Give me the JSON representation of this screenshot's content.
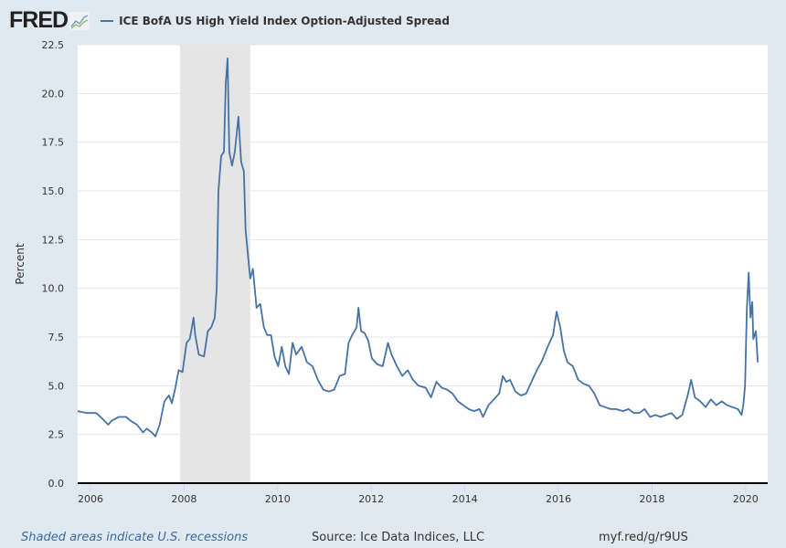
{
  "header": {
    "logo": "FRED",
    "legend_label": "ICE BofA US High Yield Index Option-Adjusted Spread"
  },
  "footer": {
    "recession_note": "Shaded areas indicate U.S. recessions",
    "source": "Source: Ice Data Indices, LLC",
    "short_url": "myf.red/g/r9US"
  },
  "colors": {
    "line": "#4572a7",
    "background": "#e1e9f0",
    "recession": "#e5e5e5",
    "grid": "#e6e6e6"
  },
  "chart_data": {
    "type": "line",
    "title": "",
    "ylabel": "Percent",
    "xlabel": "",
    "ylim": [
      0,
      22.5
    ],
    "yticks": [
      "0.0",
      "2.5",
      "5.0",
      "7.5",
      "10.0",
      "12.5",
      "15.0",
      "17.5",
      "20.0",
      "22.5"
    ],
    "xlim": [
      "2005-09-23",
      "2020-04-05"
    ],
    "xticks": [
      "2006",
      "2008",
      "2010",
      "2012",
      "2014",
      "2016",
      "2018",
      "2020"
    ],
    "grid": true,
    "legend_placement": "top",
    "recessions": [
      [
        "2007-12-01",
        "2009-06-01"
      ]
    ],
    "series": [
      {
        "name": "ICE BofA US High Yield Index Option-Adjusted Spread",
        "points": [
          [
            "2005-09-23",
            3.7
          ],
          [
            "2005-12-05",
            3.6
          ],
          [
            "2006-02-15",
            3.6
          ],
          [
            "2006-04-05",
            3.3
          ],
          [
            "2006-05-20",
            3.0
          ],
          [
            "2006-06-15",
            3.2
          ],
          [
            "2006-08-10",
            3.4
          ],
          [
            "2006-10-05",
            3.4
          ],
          [
            "2006-11-10",
            3.2
          ],
          [
            "2006-12-30",
            3.0
          ],
          [
            "2007-02-15",
            2.6
          ],
          [
            "2007-03-15",
            2.8
          ],
          [
            "2007-04-25",
            2.6
          ],
          [
            "2007-05-22",
            2.4
          ],
          [
            "2007-06-25",
            3.0
          ],
          [
            "2007-08-01",
            4.2
          ],
          [
            "2007-09-05",
            4.5
          ],
          [
            "2007-09-28",
            4.1
          ],
          [
            "2007-10-25",
            4.9
          ],
          [
            "2007-11-20",
            5.8
          ],
          [
            "2007-12-20",
            5.7
          ],
          [
            "2008-01-20",
            7.2
          ],
          [
            "2008-02-15",
            7.4
          ],
          [
            "2008-03-15",
            8.5
          ],
          [
            "2008-03-28",
            7.6
          ],
          [
            "2008-04-25",
            6.6
          ],
          [
            "2008-06-05",
            6.5
          ],
          [
            "2008-07-05",
            7.8
          ],
          [
            "2008-08-01",
            8.0
          ],
          [
            "2008-08-28",
            8.5
          ],
          [
            "2008-09-12",
            10.0
          ],
          [
            "2008-09-26",
            15.0
          ],
          [
            "2008-10-17",
            16.8
          ],
          [
            "2008-11-08",
            17.0
          ],
          [
            "2008-11-22",
            20.5
          ],
          [
            "2008-12-06",
            21.8
          ],
          [
            "2008-12-20",
            17.0
          ],
          [
            "2009-01-10",
            16.3
          ],
          [
            "2009-02-01",
            17.0
          ],
          [
            "2009-03-01",
            18.8
          ],
          [
            "2009-03-22",
            16.5
          ],
          [
            "2009-04-12",
            16.0
          ],
          [
            "2009-04-26",
            13.0
          ],
          [
            "2009-05-10",
            12.0
          ],
          [
            "2009-06-01",
            10.5
          ],
          [
            "2009-06-22",
            11.0
          ],
          [
            "2009-07-20",
            9.0
          ],
          [
            "2009-08-18",
            9.2
          ],
          [
            "2009-09-15",
            8.0
          ],
          [
            "2009-10-12",
            7.6
          ],
          [
            "2009-11-10",
            7.6
          ],
          [
            "2009-12-08",
            6.5
          ],
          [
            "2010-01-05",
            6.0
          ],
          [
            "2010-02-02",
            7.0
          ],
          [
            "2010-03-02",
            6.0
          ],
          [
            "2010-03-30",
            5.6
          ],
          [
            "2010-04-27",
            7.2
          ],
          [
            "2010-05-25",
            6.6
          ],
          [
            "2010-07-07",
            7.0
          ],
          [
            "2010-08-18",
            6.2
          ],
          [
            "2010-09-30",
            6.0
          ],
          [
            "2010-11-11",
            5.3
          ],
          [
            "2010-12-23",
            4.8
          ],
          [
            "2011-02-04",
            4.7
          ],
          [
            "2011-03-18",
            4.8
          ],
          [
            "2011-04-29",
            5.5
          ],
          [
            "2011-06-10",
            5.6
          ],
          [
            "2011-07-08",
            7.2
          ],
          [
            "2011-08-05",
            7.6
          ],
          [
            "2011-09-09",
            8.0
          ],
          [
            "2011-09-23",
            9.0
          ],
          [
            "2011-10-14",
            7.8
          ],
          [
            "2011-11-11",
            7.7
          ],
          [
            "2011-12-09",
            7.3
          ],
          [
            "2012-01-06",
            6.4
          ],
          [
            "2012-02-17",
            6.1
          ],
          [
            "2012-03-30",
            6.0
          ],
          [
            "2012-05-11",
            7.2
          ],
          [
            "2012-06-08",
            6.6
          ],
          [
            "2012-07-20",
            6.0
          ],
          [
            "2012-08-31",
            5.5
          ],
          [
            "2012-10-12",
            5.8
          ],
          [
            "2012-11-23",
            5.3
          ],
          [
            "2013-01-04",
            5.0
          ],
          [
            "2013-03-01",
            4.9
          ],
          [
            "2013-04-12",
            4.4
          ],
          [
            "2013-05-24",
            5.2
          ],
          [
            "2013-07-05",
            4.9
          ],
          [
            "2013-08-16",
            4.8
          ],
          [
            "2013-09-27",
            4.6
          ],
          [
            "2013-11-08",
            4.2
          ],
          [
            "2013-12-20",
            4.0
          ],
          [
            "2014-01-31",
            3.8
          ],
          [
            "2014-03-14",
            3.7
          ],
          [
            "2014-04-25",
            3.8
          ],
          [
            "2014-05-23",
            3.4
          ],
          [
            "2014-07-04",
            4.0
          ],
          [
            "2014-08-15",
            4.3
          ],
          [
            "2014-09-26",
            4.6
          ],
          [
            "2014-10-24",
            5.5
          ],
          [
            "2014-11-21",
            5.2
          ],
          [
            "2014-12-19",
            5.3
          ],
          [
            "2015-01-30",
            4.7
          ],
          [
            "2015-03-13",
            4.5
          ],
          [
            "2015-04-24",
            4.6
          ],
          [
            "2015-06-05",
            5.2
          ],
          [
            "2015-07-17",
            5.8
          ],
          [
            "2015-08-28",
            6.3
          ],
          [
            "2015-10-09",
            7.0
          ],
          [
            "2015-11-20",
            7.6
          ],
          [
            "2015-12-18",
            8.8
          ],
          [
            "2016-01-15",
            8.0
          ],
          [
            "2016-02-12",
            6.8
          ],
          [
            "2016-03-12",
            6.2
          ],
          [
            "2016-04-23",
            6.0
          ],
          [
            "2016-06-04",
            5.3
          ],
          [
            "2016-07-16",
            5.1
          ],
          [
            "2016-08-27",
            5.0
          ],
          [
            "2016-10-08",
            4.6
          ],
          [
            "2016-11-19",
            4.0
          ],
          [
            "2016-12-31",
            3.9
          ],
          [
            "2017-02-11",
            3.8
          ],
          [
            "2017-03-25",
            3.8
          ],
          [
            "2017-05-20",
            3.7
          ],
          [
            "2017-07-01",
            3.8
          ],
          [
            "2017-08-12",
            3.6
          ],
          [
            "2017-09-23",
            3.6
          ],
          [
            "2017-11-04",
            3.8
          ],
          [
            "2017-12-16",
            3.4
          ],
          [
            "2018-01-27",
            3.5
          ],
          [
            "2018-03-10",
            3.4
          ],
          [
            "2018-04-21",
            3.5
          ],
          [
            "2018-06-02",
            3.6
          ],
          [
            "2018-07-14",
            3.3
          ],
          [
            "2018-08-25",
            3.5
          ],
          [
            "2018-10-06",
            4.5
          ],
          [
            "2018-11-03",
            5.3
          ],
          [
            "2018-12-01",
            4.4
          ],
          [
            "2019-01-12",
            4.2
          ],
          [
            "2019-02-23",
            3.9
          ],
          [
            "2019-04-06",
            4.3
          ],
          [
            "2019-05-18",
            4.0
          ],
          [
            "2019-06-29",
            4.2
          ],
          [
            "2019-08-10",
            4.0
          ],
          [
            "2019-09-21",
            3.9
          ],
          [
            "2019-11-02",
            3.8
          ],
          [
            "2019-11-30",
            3.5
          ],
          [
            "2019-12-14",
            4.0
          ],
          [
            "2019-12-28",
            5.0
          ],
          [
            "2020-01-11",
            9.0
          ],
          [
            "2020-01-25",
            10.8
          ],
          [
            "2020-02-08",
            8.5
          ],
          [
            "2020-02-22",
            9.3
          ],
          [
            "2020-03-01",
            7.4
          ],
          [
            "2020-03-22",
            7.8
          ],
          [
            "2020-04-05",
            6.2
          ]
        ]
      }
    ]
  }
}
